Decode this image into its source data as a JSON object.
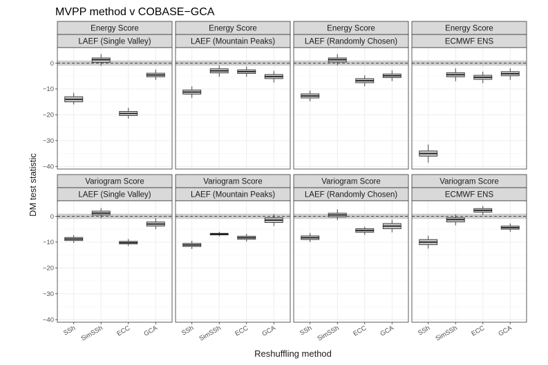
{
  "chart_data": {
    "type": "boxplot",
    "title": "MVPP method v COBASE−GCA",
    "xlabel": "Reshuffling method",
    "ylabel": "DM test statistic",
    "categories": [
      "SSh",
      "SimSSh",
      "ECC",
      "GCA"
    ],
    "ylim": [
      -41,
      6
    ],
    "yticks": [
      0,
      -10,
      -20,
      -30,
      -40
    ],
    "ytick_labels": [
      "0",
      "−10",
      "−20",
      "−30",
      "−40"
    ],
    "zero_band": [
      -1,
      1
    ],
    "rows": [
      "Energy Score",
      "Variogram Score"
    ],
    "columns": [
      "LAEF (Single Valley)",
      "LAEF (Mountain Peaks)",
      "LAEF (Randomly Chosen)",
      "ECMWF ENS"
    ],
    "panels": [
      {
        "score": "Energy Score",
        "model": "LAEF (Single Valley)",
        "boxes": [
          {
            "category": "SSh",
            "min": -16,
            "q1": -15,
            "median": -14,
            "q3": -13,
            "max": -11.5
          },
          {
            "category": "SimSSh",
            "min": -1,
            "q1": 0.3,
            "median": 1.3,
            "q3": 2,
            "max": 3.5
          },
          {
            "category": "ECC",
            "min": -21.5,
            "q1": -20.3,
            "median": -19.5,
            "q3": -18.7,
            "max": -17.3
          },
          {
            "category": "GCA",
            "min": -6.5,
            "q1": -5.3,
            "median": -4.6,
            "q3": -3.9,
            "max": -2.5
          }
        ]
      },
      {
        "score": "Energy Score",
        "model": "LAEF (Mountain Peaks)",
        "boxes": [
          {
            "category": "SSh",
            "min": -13.5,
            "q1": -12,
            "median": -11.2,
            "q3": -10.4,
            "max": -9
          },
          {
            "category": "SimSSh",
            "min": -5.3,
            "q1": -3.8,
            "median": -3,
            "q3": -2.2,
            "max": -1
          },
          {
            "category": "ECC",
            "min": -5.3,
            "q1": -4,
            "median": -3.3,
            "q3": -2.6,
            "max": -1.3
          },
          {
            "category": "GCA",
            "min": -7.5,
            "q1": -6,
            "median": -5.2,
            "q3": -4.4,
            "max": -3
          }
        ]
      },
      {
        "score": "Energy Score",
        "model": "LAEF (Randomly Chosen)",
        "boxes": [
          {
            "category": "SSh",
            "min": -14.8,
            "q1": -13.5,
            "median": -12.7,
            "q3": -11.9,
            "max": -10.6
          },
          {
            "category": "SimSSh",
            "min": -0.8,
            "q1": 0.4,
            "median": 1.3,
            "q3": 2,
            "max": 3.5
          },
          {
            "category": "ECC",
            "min": -9,
            "q1": -7.6,
            "median": -6.8,
            "q3": -6,
            "max": -4.7
          },
          {
            "category": "GCA",
            "min": -7,
            "q1": -5.6,
            "median": -4.9,
            "q3": -4.2,
            "max": -2.8
          }
        ]
      },
      {
        "score": "Energy Score",
        "model": "ECMWF ENS",
        "boxes": [
          {
            "category": "SSh",
            "min": -38.5,
            "q1": -36,
            "median": -35,
            "q3": -34,
            "max": -31.5
          },
          {
            "category": "SimSSh",
            "min": -7,
            "q1": -5.3,
            "median": -4.5,
            "q3": -3.7,
            "max": -2
          },
          {
            "category": "ECC",
            "min": -7.8,
            "q1": -6.3,
            "median": -5.5,
            "q3": -4.7,
            "max": -3.3
          },
          {
            "category": "GCA",
            "min": -6.5,
            "q1": -4.9,
            "median": -4.1,
            "q3": -3.3,
            "max": -2
          }
        ]
      },
      {
        "score": "Variogram Score",
        "model": "LAEF (Single Valley)",
        "boxes": [
          {
            "category": "SSh",
            "min": -10.3,
            "q1": -9.4,
            "median": -8.8,
            "q3": -8.2,
            "max": -7.3
          },
          {
            "category": "SimSSh",
            "min": -0.7,
            "q1": 0.5,
            "median": 1.2,
            "q3": 2,
            "max": 3.2
          },
          {
            "category": "ECC",
            "min": -11.5,
            "q1": -10.7,
            "median": -10.2,
            "q3": -9.7,
            "max": -8.8
          },
          {
            "category": "GCA",
            "min": -5,
            "q1": -3.8,
            "median": -3,
            "q3": -2.2,
            "max": -0.8
          }
        ]
      },
      {
        "score": "Variogram Score",
        "model": "LAEF (Mountain Peaks)",
        "boxes": [
          {
            "category": "SSh",
            "min": -12.7,
            "q1": -11.7,
            "median": -11.1,
            "q3": -10.5,
            "max": -9.5
          },
          {
            "category": "SimSSh",
            "min": -7.8,
            "q1": -7.2,
            "median": -6.9,
            "q3": -6.6,
            "max": -6
          },
          {
            "category": "ECC",
            "min": -9.8,
            "q1": -8.9,
            "median": -8.3,
            "q3": -7.7,
            "max": -6.8
          },
          {
            "category": "GCA",
            "min": -3.8,
            "q1": -2.4,
            "median": -1.5,
            "q3": -0.6,
            "max": 0.8
          }
        ]
      },
      {
        "score": "Variogram Score",
        "model": "LAEF (Randomly Chosen)",
        "boxes": [
          {
            "category": "SSh",
            "min": -10,
            "q1": -9,
            "median": -8.3,
            "q3": -7.6,
            "max": -6.5
          },
          {
            "category": "SimSSh",
            "min": -1.5,
            "q1": -0.2,
            "median": 0.5,
            "q3": 1.2,
            "max": 2.7
          },
          {
            "category": "ECC",
            "min": -7.2,
            "q1": -6.2,
            "median": -5.5,
            "q3": -4.8,
            "max": -4
          },
          {
            "category": "GCA",
            "min": -6.2,
            "q1": -4.8,
            "median": -3.8,
            "q3": -2.8,
            "max": -1.3
          }
        ]
      },
      {
        "score": "Variogram Score",
        "model": "ECMWF ENS",
        "boxes": [
          {
            "category": "SSh",
            "min": -12.5,
            "q1": -11,
            "median": -10,
            "q3": -9,
            "max": -7.5
          },
          {
            "category": "SimSSh",
            "min": -3.5,
            "q1": -2.2,
            "median": -1.3,
            "q3": -0.6,
            "max": 0.7
          },
          {
            "category": "ECC",
            "min": 0.5,
            "q1": 1.6,
            "median": 2.3,
            "q3": 3,
            "max": 4
          },
          {
            "category": "GCA",
            "min": -6,
            "q1": -5,
            "median": -4.4,
            "q3": -3.8,
            "max": -2.8
          }
        ]
      }
    ]
  }
}
